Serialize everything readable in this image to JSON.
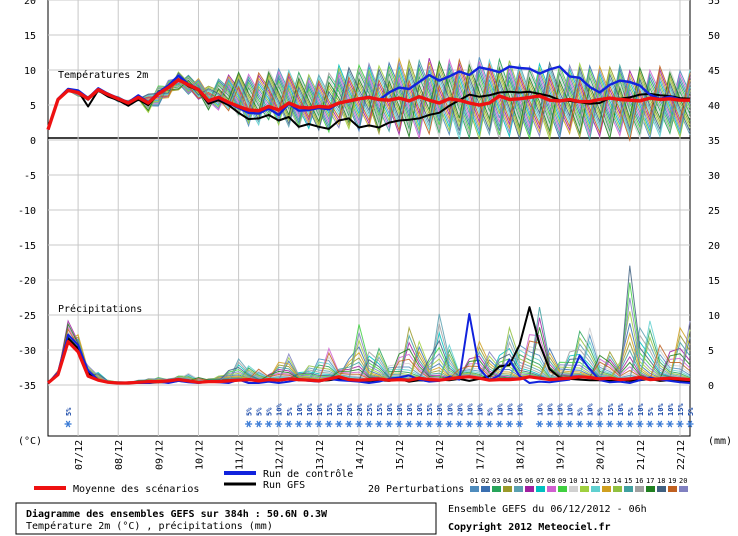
{
  "chart_data": {
    "type": "line",
    "titles": {
      "temp_panel": "Températures 2m",
      "precip_panel": "Précipitations"
    },
    "units": {
      "left": "(°C)",
      "right": "(mm)"
    },
    "left_axis_ticks": [
      "20",
      "15",
      "10",
      "5",
      "0",
      "-5",
      "-10",
      "-15",
      "-20",
      "-25",
      "-30",
      "-35"
    ],
    "right_axis_ticks": [
      "55",
      "50",
      "45",
      "40",
      "35",
      "30",
      "25",
      "20",
      "15",
      "10",
      "5",
      "0"
    ],
    "dates": [
      "07/12",
      "08/12",
      "09/12",
      "10/12",
      "11/12",
      "12/12",
      "13/12",
      "14/12",
      "15/12",
      "16/12",
      "17/12",
      "18/12",
      "19/12",
      "20/12",
      "21/12",
      "22/12"
    ],
    "x_hours": [
      0,
      6,
      12,
      18,
      24,
      30,
      36,
      42,
      48,
      54,
      60,
      66,
      72,
      78,
      84,
      90,
      96,
      102,
      108,
      114,
      120,
      126,
      132,
      138,
      144,
      150,
      156,
      162,
      168,
      174,
      180,
      186,
      192,
      198,
      204,
      210,
      216,
      222,
      228,
      234,
      240,
      246,
      252,
      258,
      264,
      270,
      276,
      282,
      288,
      294,
      300,
      306,
      312,
      318,
      324,
      330,
      336,
      342,
      348,
      354,
      360,
      366,
      372,
      378,
      384
    ],
    "temperature": {
      "mean": [
        1.2,
        5.5,
        6.8,
        6.5,
        5.6,
        6.9,
        6.2,
        5.6,
        5.0,
        5.8,
        5.0,
        6.3,
        7.2,
        8.3,
        7.6,
        6.9,
        5.3,
        5.8,
        5.1,
        4.5,
        4.0,
        3.9,
        4.5,
        4.0,
        5.0,
        4.4,
        4.3,
        4.5,
        4.4,
        5.0,
        5.3,
        5.6,
        5.8,
        5.5,
        5.4,
        5.7,
        5.3,
        5.9,
        5.4,
        5.0,
        5.6,
        5.4,
        5.0,
        4.7,
        5.0,
        6.0,
        5.5,
        5.6,
        5.8,
        6.0,
        5.4,
        5.3,
        5.5,
        5.2,
        5.2,
        5.5,
        5.7,
        5.5,
        5.4,
        5.3,
        5.7,
        5.5,
        5.6,
        5.4,
        5.4
      ],
      "control": [
        1.2,
        5.6,
        7.0,
        6.8,
        5.7,
        7.1,
        6.3,
        5.7,
        5.1,
        6.1,
        5.1,
        6.5,
        7.5,
        8.9,
        7.7,
        7.0,
        5.2,
        5.7,
        5.0,
        4.3,
        3.6,
        3.5,
        4.2,
        3.3,
        4.9,
        3.9,
        4.0,
        4.3,
        4.1,
        5.0,
        5.2,
        5.6,
        5.9,
        5.4,
        6.5,
        7.2,
        7.0,
        8.0,
        9.0,
        8.2,
        8.8,
        9.5,
        9.0,
        10.1,
        9.8,
        9.4,
        10.2,
        10.0,
        9.9,
        9.2,
        9.8,
        10.2,
        8.8,
        8.6,
        7.3,
        6.5,
        7.6,
        8.2,
        8.0,
        7.5,
        6.2,
        5.6,
        5.9,
        5.5,
        5.4
      ],
      "gfs": [
        1.2,
        5.6,
        7.0,
        6.7,
        4.5,
        6.8,
        5.9,
        5.4,
        4.6,
        5.5,
        4.7,
        6.3,
        7.2,
        8.4,
        7.4,
        6.8,
        4.9,
        5.4,
        4.7,
        3.6,
        2.7,
        2.8,
        3.3,
        2.5,
        3.0,
        1.6,
        2.0,
        1.6,
        1.3,
        2.5,
        2.8,
        1.5,
        1.8,
        1.5,
        2.2,
        2.5,
        2.6,
        2.8,
        3.3,
        3.6,
        4.6,
        5.4,
        6.2,
        5.9,
        6.1,
        6.5,
        6.6,
        6.5,
        6.6,
        6.3,
        6.0,
        5.4,
        5.3,
        5.1,
        4.9,
        5.0,
        5.7,
        5.6,
        5.8,
        6.2,
        6.3,
        6.1,
        6.0,
        5.7,
        5.6
      ],
      "spread_min": [
        1.0,
        5.0,
        6.2,
        4.4,
        4.6,
        5.5,
        5.0,
        3.9,
        3.3,
        3.9,
        3.2,
        4.0,
        5.3,
        6.4,
        5.8,
        5.1,
        3.6,
        3.4,
        3.5,
        2.5,
        1.0,
        1.2,
        2.0,
        1.2,
        0.5,
        0.3,
        0.4,
        0.0,
        -0.3,
        0.3,
        0.0,
        -0.5,
        0.2,
        -1.0,
        -0.5,
        -1.2,
        -1.5,
        -2.0,
        -1.0,
        -1.5,
        -1.2,
        -2.0,
        -1.6,
        -1.8,
        -1.0,
        -2.2,
        -1.5,
        -2.0,
        -2.0,
        -1.6,
        -2.0,
        -1.8,
        -1.0,
        -1.6,
        -2.0,
        -1.5,
        -2.0,
        -1.4,
        -2.2,
        -1.8,
        -1.9,
        -1.5,
        -1.0,
        -1.6,
        -1.2
      ],
      "spread_max": [
        1.4,
        6.2,
        7.6,
        7.5,
        6.9,
        8.0,
        7.2,
        6.9,
        6.5,
        6.8,
        6.7,
        7.8,
        8.6,
        9.8,
        9.4,
        9.0,
        8.1,
        9.3,
        10.3,
        11.0,
        10.8,
        11.1,
        11.5,
        11.8,
        11.2,
        11.0,
        10.6,
        10.5,
        10.9,
        12.2,
        11.6,
        12.0,
        12.2,
        11.9,
        12.5,
        13.2,
        13.0,
        12.8,
        13.4,
        12.9,
        13.0,
        13.1,
        13.0,
        13.8,
        13.2,
        13.0,
        12.9,
        12.2,
        11.7,
        12.1,
        12.5,
        12.1,
        12.0,
        12.4,
        12.0,
        11.8,
        11.6,
        12.0,
        11.0,
        11.6,
        11.0,
        11.8,
        11.2,
        11.0,
        11.2
      ]
    },
    "precipitation": {
      "mean": [
        0,
        1.2,
        6.0,
        4.5,
        1.0,
        0.4,
        0.1,
        0.0,
        0.0,
        0.1,
        0.2,
        0.2,
        0.3,
        0.5,
        0.3,
        0.1,
        0.2,
        0.2,
        0.3,
        0.4,
        0.5,
        0.3,
        0.5,
        0.4,
        0.6,
        0.5,
        0.4,
        0.3,
        0.6,
        0.9,
        0.5,
        0.4,
        0.5,
        0.6,
        0.4,
        0.5,
        0.4,
        0.7,
        0.5,
        0.4,
        0.6,
        0.8,
        0.9,
        0.7,
        0.4,
        0.5,
        0.5,
        0.6,
        0.9,
        0.7,
        0.5,
        0.6,
        0.7,
        0.9,
        0.8,
        0.6,
        0.7,
        0.5,
        0.6,
        0.8,
        0.5,
        0.6,
        0.7,
        0.6,
        0.5
      ],
      "control": [
        0,
        1.5,
        7.0,
        5.5,
        1.8,
        0.5,
        0.1,
        0.0,
        0.0,
        0.0,
        0.0,
        0.2,
        0.0,
        0.3,
        0.1,
        0.0,
        0.2,
        0.1,
        0.0,
        0.5,
        0.0,
        0.0,
        0.2,
        0.0,
        0.2,
        0.5,
        0.3,
        0.2,
        0.6,
        0.4,
        0.3,
        0.2,
        0.0,
        0.2,
        0.6,
        0.8,
        1.1,
        0.5,
        0.2,
        0.3,
        0.9,
        0.5,
        10.0,
        2.1,
        0.4,
        1.1,
        3.4,
        1.0,
        0.0,
        0.2,
        0.1,
        0.3,
        0.5,
        4.0,
        2.0,
        0.4,
        0.1,
        0.2,
        0.0,
        0.4,
        0.8,
        0.5,
        0.3,
        0.1,
        0.0
      ],
      "gfs": [
        0,
        1.3,
        6.5,
        5.0,
        1.4,
        0.4,
        0.1,
        0.0,
        0.0,
        0.0,
        0.0,
        0.1,
        0.1,
        0.3,
        0.2,
        0.1,
        0.2,
        0.2,
        0.1,
        0.4,
        0.4,
        0.3,
        0.5,
        0.3,
        0.6,
        0.4,
        0.5,
        0.3,
        0.4,
        0.6,
        0.4,
        0.3,
        0.3,
        0.4,
        0.3,
        0.6,
        0.2,
        0.4,
        0.3,
        0.5,
        0.4,
        0.6,
        0.3,
        0.6,
        1.0,
        2.4,
        2.6,
        5.5,
        11.0,
        5.7,
        2.0,
        0.8,
        0.6,
        0.5,
        0.4,
        0.4,
        0.3,
        0.5,
        0.3,
        0.4,
        0.6,
        0.3,
        0.4,
        0.3,
        0.2
      ],
      "max": [
        0,
        1.8,
        9.0,
        7.0,
        2.5,
        1.5,
        0.4,
        0.2,
        0.2,
        0.4,
        0.6,
        0.8,
        0.6,
        1.0,
        1.4,
        0.8,
        0.6,
        1.0,
        1.8,
        3.5,
        2.5,
        2.0,
        1.2,
        3.0,
        4.2,
        1.5,
        2.5,
        3.5,
        5.0,
        2.0,
        3.5,
        8.5,
        4.5,
        5.0,
        2.5,
        4.2,
        8.0,
        6.0,
        3.5,
        10.0,
        5.5,
        2.0,
        3.5,
        6.0,
        4.5,
        4.0,
        8.0,
        5.5,
        7.0,
        11.0,
        5.0,
        3.0,
        4.5,
        7.5,
        8.0,
        4.0,
        4.5,
        3.0,
        17.0,
        8.0,
        9.0,
        5.5,
        4.5,
        8.0,
        9.0
      ]
    },
    "probabilities": [
      {
        "h": 12,
        "label": "5%"
      },
      {
        "h": 120,
        "label": "5%"
      },
      {
        "h": 126,
        "label": "5%"
      },
      {
        "h": 132,
        "label": "5%"
      },
      {
        "h": 138,
        "label": "10%"
      },
      {
        "h": 144,
        "label": "5%"
      },
      {
        "h": 150,
        "label": "10%"
      },
      {
        "h": 156,
        "label": "10%"
      },
      {
        "h": 162,
        "label": "10%"
      },
      {
        "h": 168,
        "label": "15%"
      },
      {
        "h": 174,
        "label": "10%"
      },
      {
        "h": 180,
        "label": "20%"
      },
      {
        "h": 186,
        "label": "20%"
      },
      {
        "h": 192,
        "label": "25%"
      },
      {
        "h": 198,
        "label": "15%"
      },
      {
        "h": 204,
        "label": "10%"
      },
      {
        "h": 210,
        "label": "10%"
      },
      {
        "h": 216,
        "label": "10%"
      },
      {
        "h": 222,
        "label": "10%"
      },
      {
        "h": 228,
        "label": "15%"
      },
      {
        "h": 234,
        "label": "10%"
      },
      {
        "h": 240,
        "label": "10%"
      },
      {
        "h": 246,
        "label": "20%"
      },
      {
        "h": 252,
        "label": "10%"
      },
      {
        "h": 258,
        "label": "10%"
      },
      {
        "h": 264,
        "label": "5%"
      },
      {
        "h": 270,
        "label": "10%"
      },
      {
        "h": 276,
        "label": "10%"
      },
      {
        "h": 282,
        "label": "10%"
      },
      {
        "h": 294,
        "label": "10%"
      },
      {
        "h": 300,
        "label": "10%"
      },
      {
        "h": 306,
        "label": "10%"
      },
      {
        "h": 312,
        "label": "10%"
      },
      {
        "h": 318,
        "label": "5%"
      },
      {
        "h": 324,
        "label": "10%"
      },
      {
        "h": 330,
        "label": "5%"
      },
      {
        "h": 336,
        "label": "15%"
      },
      {
        "h": 342,
        "label": "10%"
      },
      {
        "h": 348,
        "label": "5%"
      },
      {
        "h": 354,
        "label": "10%"
      },
      {
        "h": 360,
        "label": "5%"
      },
      {
        "h": 366,
        "label": "10%"
      },
      {
        "h": 372,
        "label": "10%"
      },
      {
        "h": 378,
        "label": "15%"
      },
      {
        "h": 384,
        "label": "5%"
      }
    ],
    "legend": {
      "control": "Run de contrôle",
      "gfs": "Run GFS",
      "mean": "Moyenne des scénarios",
      "perturb": "20 Perturbations",
      "perturb_nums": [
        "01",
        "02",
        "03",
        "04",
        "05",
        "06",
        "07",
        "08",
        "09",
        "10",
        "11",
        "12",
        "13",
        "14",
        "15",
        "16",
        "17",
        "18",
        "19",
        "20"
      ],
      "perturb_colors": [
        "#4f8cbd",
        "#3a6fb0",
        "#27a45a",
        "#9a9a2a",
        "#5aa0b0",
        "#a020a0",
        "#00c0c0",
        "#d060d0",
        "#40d040",
        "#d0d0d0",
        "#a0d040",
        "#60d0d0",
        "#d0a020",
        "#90c040",
        "#40a0a0",
        "#a0a0a0",
        "#208020",
        "#406080",
        "#c06020",
        "#8080c0"
      ],
      "mean_color": "#ee1111",
      "control_color": "#1122dd",
      "gfs_color": "#000000"
    },
    "footer": {
      "title": "Diagramme des ensembles GEFS sur 384h : 50.6N 0.3W",
      "subtitle": "Température 2m (°C) , précipitations (mm)",
      "run_info": "Ensemble GEFS du 06/12/2012 - 06h",
      "copyright": "Copyright 2012 Meteociel.fr"
    }
  }
}
